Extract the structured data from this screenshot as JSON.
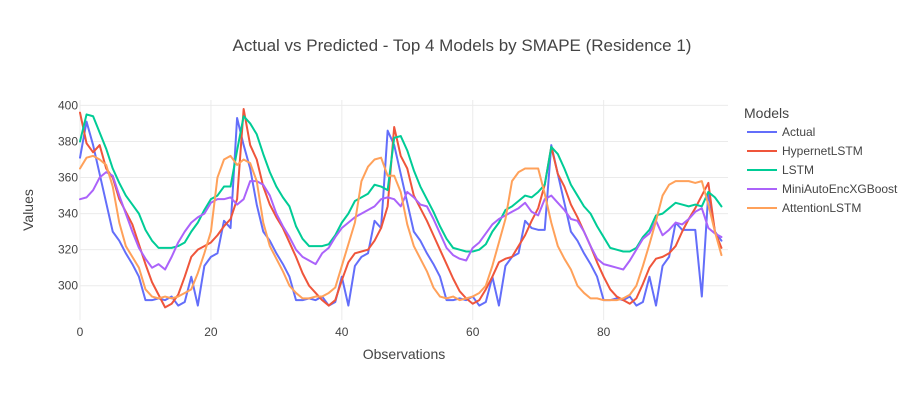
{
  "chart_data": {
    "type": "line",
    "title": "Actual vs Predicted - Top 4 Models by SMAPE (Residence 1)",
    "xlabel": "Observations",
    "ylabel": "Values",
    "xlim": [
      0,
      99
    ],
    "ylim": [
      281,
      403
    ],
    "x_ticks": [
      0,
      20,
      40,
      60,
      80
    ],
    "y_ticks": [
      300,
      320,
      340,
      360,
      380,
      400
    ],
    "grid": true,
    "legend_title": "Models",
    "legend_position": "right",
    "series": [
      {
        "name": "Actual",
        "color": "#636efa",
        "values": [
          371,
          391,
          378,
          362,
          346,
          330,
          325,
          318,
          312,
          305,
          292,
          292,
          293,
          292,
          294,
          289,
          291,
          305,
          289,
          311,
          316,
          318,
          336,
          332,
          393,
          378,
          365,
          345,
          330,
          325,
          318,
          312,
          305,
          292,
          292,
          293,
          292,
          294,
          289,
          291,
          305,
          289,
          311,
          316,
          318,
          336,
          332,
          386,
          378,
          362,
          346,
          330,
          325,
          318,
          312,
          305,
          292,
          292,
          293,
          292,
          294,
          289,
          291,
          305,
          289,
          311,
          316,
          318,
          336,
          332,
          331,
          331,
          378,
          362,
          346,
          330,
          325,
          318,
          312,
          305,
          292,
          292,
          293,
          292,
          294,
          289,
          291,
          305,
          289,
          311,
          316,
          335,
          331,
          331,
          331,
          294,
          352,
          330,
          325
        ]
      },
      {
        "name": "HypernetLSTM",
        "color": "#ef553b",
        "values": [
          396,
          379,
          374,
          378,
          365,
          360,
          348,
          341,
          334,
          323,
          312,
          302,
          295,
          288,
          290,
          295,
          305,
          316,
          320,
          322,
          324,
          328,
          333,
          337,
          348,
          398,
          378,
          370,
          355,
          345,
          338,
          332,
          324,
          316,
          307,
          300,
          296,
          292,
          289,
          292,
          303,
          313,
          318,
          319,
          320,
          325,
          332,
          344,
          388,
          372,
          365,
          350,
          343,
          336,
          328,
          320,
          312,
          304,
          297,
          293,
          290,
          292,
          298,
          305,
          313,
          315,
          316,
          322,
          328,
          336,
          343,
          356,
          377,
          362,
          355,
          345,
          338,
          330,
          322,
          313,
          305,
          298,
          294,
          292,
          290,
          293,
          301,
          310,
          315,
          316,
          318,
          322,
          330,
          337,
          343,
          350,
          357,
          330,
          321
        ]
      },
      {
        "name": "LSTM",
        "color": "#00cc96",
        "values": [
          380,
          395,
          394,
          385,
          376,
          365,
          357,
          350,
          345,
          340,
          331,
          325,
          321,
          321,
          321,
          322,
          324,
          330,
          335,
          342,
          348,
          350,
          355,
          355,
          375,
          394,
          390,
          384,
          373,
          363,
          355,
          349,
          344,
          333,
          326,
          322,
          322,
          322,
          323,
          328,
          335,
          340,
          347,
          349,
          351,
          356,
          355,
          353,
          382,
          383,
          375,
          364,
          355,
          348,
          341,
          333,
          326,
          321,
          320,
          319,
          319,
          320,
          323,
          330,
          335,
          342,
          344,
          347,
          350,
          349,
          352,
          356,
          377,
          373,
          365,
          356,
          350,
          344,
          340,
          333,
          327,
          321,
          320,
          319,
          319,
          321,
          327,
          331,
          339,
          340,
          343,
          346,
          345,
          344,
          345,
          344,
          352,
          349,
          344
        ]
      },
      {
        "name": "MiniAutoEncXGBoost",
        "color": "#ab63fa",
        "values": [
          348,
          349,
          353,
          360,
          363,
          361,
          350,
          340,
          330,
          321,
          315,
          310,
          312,
          309,
          316,
          324,
          330,
          335,
          338,
          340,
          346,
          348,
          348,
          349,
          345,
          348,
          358,
          358,
          356,
          350,
          340,
          333,
          327,
          320,
          316,
          314,
          312,
          318,
          321,
          327,
          332,
          335,
          338,
          340,
          342,
          344,
          348,
          349,
          348,
          344,
          352,
          349,
          345,
          344,
          337,
          329,
          321,
          317,
          315,
          314,
          321,
          324,
          329,
          334,
          337,
          339,
          341,
          343,
          346,
          341,
          339,
          348,
          350,
          346,
          342,
          337,
          336,
          330,
          322,
          315,
          312,
          311,
          310,
          309,
          314,
          320,
          326,
          329,
          336,
          328,
          331,
          335,
          334,
          337,
          341,
          343,
          332,
          329,
          327
        ]
      },
      {
        "name": "AttentionLSTM",
        "color": "#ffa15a",
        "values": [
          365,
          371,
          372,
          370,
          367,
          355,
          335,
          322,
          316,
          310,
          298,
          294,
          293,
          294,
          293,
          294,
          296,
          298,
          307,
          318,
          330,
          360,
          370,
          372,
          367,
          370,
          368,
          358,
          335,
          322,
          315,
          308,
          300,
          296,
          293,
          293,
          294,
          294,
          296,
          299,
          311,
          323,
          335,
          358,
          366,
          370,
          371,
          361,
          361,
          352,
          334,
          322,
          315,
          308,
          299,
          294,
          293,
          294,
          292,
          293,
          294,
          296,
          300,
          311,
          324,
          337,
          358,
          363,
          365,
          365,
          365,
          351,
          335,
          322,
          315,
          309,
          300,
          296,
          293,
          293,
          292,
          292,
          292,
          293,
          295,
          300,
          311,
          323,
          336,
          350,
          356,
          358,
          358,
          358,
          357,
          358,
          345,
          330,
          317
        ]
      }
    ]
  }
}
